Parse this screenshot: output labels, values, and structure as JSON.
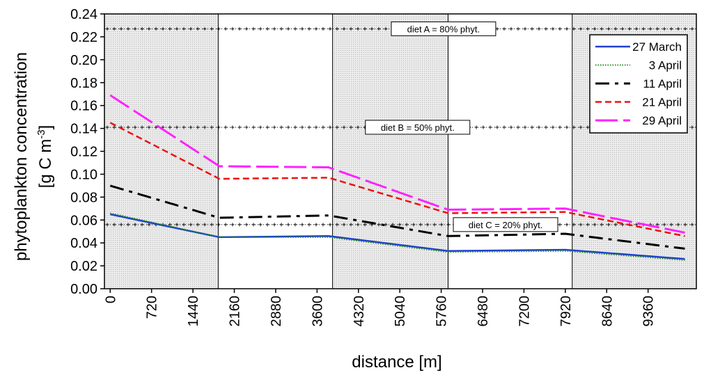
{
  "chart_data": {
    "type": "line",
    "xlabel": "distance [m]",
    "ylabel_line1": "phytoplankton concentration",
    "ylabel_line2_prefix": "[g C m",
    "ylabel_line2_sup": "-3",
    "ylabel_line2_suffix": "]",
    "xlim": [
      -100,
      10200
    ],
    "ylim": [
      0,
      0.24
    ],
    "x_ticks": [
      0,
      720,
      1440,
      2160,
      2880,
      3600,
      4320,
      5040,
      5760,
      6480,
      7200,
      7920,
      8640,
      9360
    ],
    "y_ticks": [
      "0.00",
      "0.02",
      "0.04",
      "0.06",
      "0.08",
      "0.10",
      "0.12",
      "0.14",
      "0.16",
      "0.18",
      "0.20",
      "0.22",
      "0.24"
    ],
    "grid": false,
    "legend_position": "top-right",
    "shaded_regions": [
      [
        -100,
        1880
      ],
      [
        3870,
        5880
      ],
      [
        8040,
        10200
      ]
    ],
    "reference_lines": [
      {
        "y": 0.227,
        "label": "diet A = 80% phyt.",
        "label_x": 5800
      },
      {
        "y": 0.141,
        "label": "diet B = 50% phyt.",
        "label_x": 5350
      },
      {
        "y": 0.056,
        "label": "diet C = 20% phyt.",
        "label_x": 6880
      }
    ],
    "series": [
      {
        "name": "27 March",
        "color": "#1f3fcf",
        "style": "solid",
        "x": [
          0,
          1900,
          3800,
          5880,
          7920,
          10000
        ],
        "y": [
          0.065,
          0.045,
          0.046,
          0.033,
          0.034,
          0.026
        ]
      },
      {
        "name": "3 April",
        "color": "#1a8a1a",
        "style": "dotted",
        "x": [
          0,
          1900,
          3800,
          5880,
          7920,
          10000
        ],
        "y": [
          0.066,
          0.045,
          0.045,
          0.032,
          0.033,
          0.025
        ]
      },
      {
        "name": "11 April",
        "color": "#000000",
        "style": "dashdot",
        "x": [
          0,
          1900,
          3800,
          5880,
          7920,
          10000
        ],
        "y": [
          0.09,
          0.062,
          0.064,
          0.046,
          0.048,
          0.035
        ]
      },
      {
        "name": "21 April",
        "color": "#ee1111",
        "style": "shortdash",
        "x": [
          0,
          1900,
          3800,
          5880,
          7920,
          10000
        ],
        "y": [
          0.145,
          0.096,
          0.097,
          0.066,
          0.067,
          0.046
        ]
      },
      {
        "name": "29 April",
        "color": "#ff22ff",
        "style": "longdash",
        "x": [
          0,
          1900,
          3800,
          5880,
          7920,
          10000
        ],
        "y": [
          0.169,
          0.107,
          0.106,
          0.069,
          0.07,
          0.049
        ]
      }
    ]
  }
}
